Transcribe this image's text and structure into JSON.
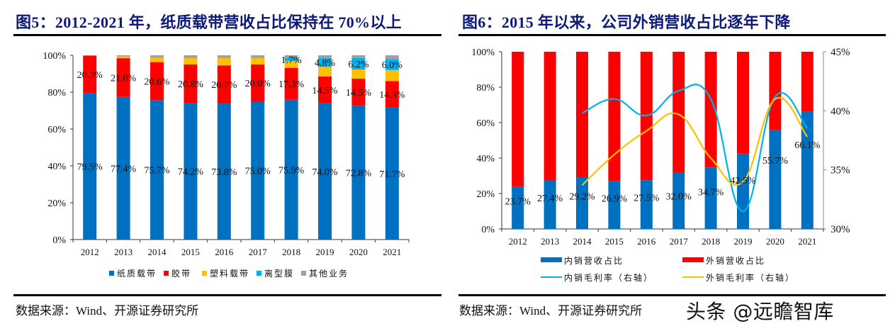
{
  "left": {
    "title": "图5：2012-2021 年，纸质载带营收占比保持在 70%以上",
    "source": "数据来源：Wind、开源证券研究所"
  },
  "right": {
    "title": "图6：2015 年以来，公司外销营收占比逐年下降",
    "source": "数据来源：Wind、开源证券研究所"
  },
  "watermark": "头条 @远瞻智库",
  "chart_data": [
    {
      "type": "bar",
      "stacked": true,
      "title": "2012-2021 年，纸质载带营收占比保持在 70%以上",
      "categories": [
        "2012",
        "2013",
        "2014",
        "2015",
        "2016",
        "2017",
        "2018",
        "2019",
        "2020",
        "2021"
      ],
      "ylim": [
        0,
        100
      ],
      "yticks": [
        "0%",
        "20%",
        "40%",
        "60%",
        "80%",
        "100%"
      ],
      "grid": false,
      "legend_position": "bottom",
      "series": [
        {
          "name": "纸质载带",
          "color": "#0070c0",
          "values": [
            79.5,
            77.4,
            75.7,
            74.2,
            73.8,
            75.0,
            75.9,
            74.0,
            72.8,
            71.7
          ],
          "labels": [
            "79.5%",
            "77.4%",
            "75.7%",
            "74.2%",
            "73.8%",
            "75.0%",
            "75.9%",
            "74.0%",
            "72.8%",
            "71.7%"
          ]
        },
        {
          "name": "胶带",
          "color": "#ff0000",
          "values": [
            20.3,
            21.0,
            20.6,
            20.8,
            20.7,
            20.0,
            17.3,
            14.5,
            14.5,
            14.3
          ],
          "labels": [
            "20.3%",
            "21.0%",
            "20.6%",
            "20.8%",
            "20.7%",
            "20.0%",
            "17.3%",
            "14.5%",
            "14.5%",
            "14.3%"
          ]
        },
        {
          "name": "塑料载带",
          "color": "#ffc000",
          "values": [
            0.1,
            1.0,
            2.4,
            3.5,
            4.0,
            3.5,
            3.6,
            5.2,
            5.0,
            6.0
          ],
          "labels": []
        },
        {
          "name": "离型膜",
          "color": "#00b0f0",
          "values": [
            0,
            0,
            0,
            0,
            0,
            0,
            1.7,
            4.8,
            6.2,
            6.0
          ],
          "labels": [
            "",
            "",
            "",
            "",
            "",
            "",
            "1.7%",
            "4.8%",
            "6.2%",
            "6.0%"
          ]
        },
        {
          "name": "其他业务",
          "color": "#a0a0a0",
          "values": [
            0.1,
            0.6,
            1.3,
            1.5,
            1.5,
            1.5,
            1.5,
            1.5,
            1.5,
            2.0
          ],
          "labels": []
        }
      ]
    },
    {
      "type": "bar",
      "stacked": true,
      "title": "2015 年以来，公司外销营收占比逐年下降",
      "categories": [
        "2012",
        "2013",
        "2014",
        "2015",
        "2016",
        "2017",
        "2018",
        "2019",
        "2020",
        "2021"
      ],
      "ylim": [
        0,
        100
      ],
      "yticks": [
        "0%",
        "20%",
        "40%",
        "60%",
        "80%",
        "100%"
      ],
      "y2lim": [
        30,
        45
      ],
      "y2ticks": [
        "30%",
        "35%",
        "40%",
        "45%"
      ],
      "grid": false,
      "legend_position": "bottom",
      "series": [
        {
          "name": "内销营收占比",
          "kind": "bar",
          "color": "#0070c0",
          "values": [
            23.7,
            27.4,
            29.2,
            26.9,
            27.5,
            32.0,
            34.7,
            42.5,
            55.7,
            66.1
          ],
          "labels": [
            "23.7%",
            "27.4%",
            "29.2%",
            "26.9%",
            "27.5%",
            "32.0%",
            "34.7%",
            "42.5%",
            "55.7%",
            "66.1%"
          ]
        },
        {
          "name": "外销营收占比",
          "kind": "bar",
          "color": "#ff0000",
          "values": [
            76.3,
            72.6,
            70.8,
            73.1,
            72.5,
            68.0,
            65.3,
            57.5,
            44.3,
            33.9
          ]
        },
        {
          "name": "内销毛利率（右轴）",
          "kind": "line",
          "axis": "right",
          "color": "#00b0f0",
          "values": [
            null,
            null,
            39.8,
            41.0,
            39.6,
            41.7,
            41.0,
            31.5,
            41.2,
            38.5
          ]
        },
        {
          "name": "外销毛利率（右轴）",
          "kind": "line",
          "axis": "right",
          "color": "#ffc000",
          "values": [
            null,
            null,
            33.7,
            36.3,
            38.3,
            39.7,
            36.0,
            34.0,
            41.0,
            37.8
          ]
        }
      ]
    }
  ]
}
